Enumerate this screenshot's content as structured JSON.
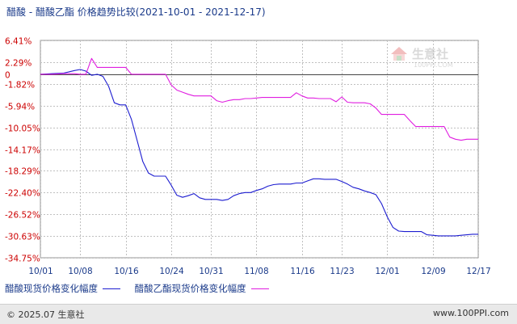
{
  "title_parts": {
    "name": "醋酸 - 醋酸乙酯 价格趋势比较",
    "date_range": "(2021-10-01 - 2021-12-17)"
  },
  "watermark": {
    "brand": "生意社",
    "url": "100PPI.COM"
  },
  "footer": {
    "copyright": "© 2025.07 生意社",
    "url": "www.100PPI.com"
  },
  "colors": {
    "series1": "#1d1dd0",
    "series2": "#e01ee0",
    "grid": "#c0c0c0",
    "tick_label": "#cc0000",
    "axis_text": "#1a3a8a"
  },
  "chart_data": {
    "type": "line",
    "title": "醋酸 - 醋酸乙酯 价格趋势比较(2021-10-01 - 2021-12-17)",
    "xlabel": "",
    "ylabel": "",
    "ylim": [
      -34.75,
      6.41
    ],
    "grid": true,
    "legend_position": "bottom",
    "y_ticks": [
      6.41,
      2.29,
      0,
      -1.82,
      -5.94,
      -10.05,
      -14.17,
      -18.29,
      -22.4,
      -26.52,
      -30.63,
      -34.75
    ],
    "y_tick_labels": [
      "6.41%",
      "2.29%",
      "0",
      "-1.82%",
      "-5.94%",
      "-10.05%",
      "-14.17%",
      "-18.29%",
      "-22.40%",
      "-26.52%",
      "-30.63%",
      "-34.75%"
    ],
    "x_start": "2021-10-01",
    "x_end": "2021-12-17",
    "x_ticks": [
      "2021-10-01",
      "2021-10-08",
      "2021-10-16",
      "2021-10-24",
      "2021-10-31",
      "2021-11-08",
      "2021-11-16",
      "2021-11-23",
      "2021-12-01",
      "2021-12-09",
      "2021-12-17"
    ],
    "x_tick_labels": [
      "10/01",
      "10/08",
      "10/16",
      "10/24",
      "10/31",
      "11/08",
      "11/16",
      "11/23",
      "12/01",
      "12/09",
      "12/17"
    ],
    "series": [
      {
        "name": "醋酸现货价格变化幅度",
        "points": [
          [
            "2021-10-01",
            0.0
          ],
          [
            "2021-10-03",
            0.1
          ],
          [
            "2021-10-05",
            0.2
          ],
          [
            "2021-10-07",
            0.7
          ],
          [
            "2021-10-08",
            0.9
          ],
          [
            "2021-10-09",
            0.6
          ],
          [
            "2021-10-10",
            -0.2
          ],
          [
            "2021-10-11",
            0.0
          ],
          [
            "2021-10-12",
            -0.4
          ],
          [
            "2021-10-13",
            -2.3
          ],
          [
            "2021-10-14",
            -5.4
          ],
          [
            "2021-10-15",
            -5.8
          ],
          [
            "2021-10-16",
            -5.8
          ],
          [
            "2021-10-17",
            -8.5
          ],
          [
            "2021-10-18",
            -12.5
          ],
          [
            "2021-10-19",
            -16.5
          ],
          [
            "2021-10-20",
            -18.7
          ],
          [
            "2021-10-21",
            -19.3
          ],
          [
            "2021-10-22",
            -19.3
          ],
          [
            "2021-10-23",
            -19.3
          ],
          [
            "2021-10-24",
            -21.0
          ],
          [
            "2021-10-25",
            -22.9
          ],
          [
            "2021-10-26",
            -23.3
          ],
          [
            "2021-10-27",
            -23.0
          ],
          [
            "2021-10-28",
            -22.6
          ],
          [
            "2021-10-29",
            -23.4
          ],
          [
            "2021-10-30",
            -23.7
          ],
          [
            "2021-11-01",
            -23.7
          ],
          [
            "2021-11-02",
            -23.9
          ],
          [
            "2021-11-03",
            -23.7
          ],
          [
            "2021-11-04",
            -23.0
          ],
          [
            "2021-11-05",
            -22.6
          ],
          [
            "2021-11-06",
            -22.4
          ],
          [
            "2021-11-07",
            -22.4
          ],
          [
            "2021-11-08",
            -22.0
          ],
          [
            "2021-11-09",
            -21.7
          ],
          [
            "2021-11-10",
            -21.2
          ],
          [
            "2021-11-11",
            -20.9
          ],
          [
            "2021-11-12",
            -20.8
          ],
          [
            "2021-11-13",
            -20.8
          ],
          [
            "2021-11-14",
            -20.8
          ],
          [
            "2021-11-15",
            -20.6
          ],
          [
            "2021-11-16",
            -20.6
          ],
          [
            "2021-11-17",
            -20.2
          ],
          [
            "2021-11-18",
            -19.8
          ],
          [
            "2021-11-19",
            -19.8
          ],
          [
            "2021-11-20",
            -19.9
          ],
          [
            "2021-11-21",
            -19.9
          ],
          [
            "2021-11-22",
            -19.9
          ],
          [
            "2021-11-23",
            -20.3
          ],
          [
            "2021-11-24",
            -20.8
          ],
          [
            "2021-11-25",
            -21.4
          ],
          [
            "2021-11-26",
            -21.7
          ],
          [
            "2021-11-27",
            -22.1
          ],
          [
            "2021-11-28",
            -22.4
          ],
          [
            "2021-11-29",
            -22.8
          ],
          [
            "2021-11-30",
            -24.5
          ],
          [
            "2021-12-01",
            -27.0
          ],
          [
            "2021-12-02",
            -29.0
          ],
          [
            "2021-12-03",
            -29.7
          ],
          [
            "2021-12-04",
            -29.8
          ],
          [
            "2021-12-05",
            -29.8
          ],
          [
            "2021-12-06",
            -29.8
          ],
          [
            "2021-12-07",
            -29.8
          ],
          [
            "2021-12-08",
            -30.4
          ],
          [
            "2021-12-09",
            -30.5
          ],
          [
            "2021-12-10",
            -30.6
          ],
          [
            "2021-12-11",
            -30.6
          ],
          [
            "2021-12-12",
            -30.6
          ],
          [
            "2021-12-13",
            -30.6
          ],
          [
            "2021-12-14",
            -30.5
          ],
          [
            "2021-12-15",
            -30.4
          ],
          [
            "2021-12-16",
            -30.3
          ],
          [
            "2021-12-17",
            -30.3
          ]
        ]
      },
      {
        "name": "醋酸乙酯现货价格变化幅度",
        "points": [
          [
            "2021-10-01",
            0.0
          ],
          [
            "2021-10-03",
            0.0
          ],
          [
            "2021-10-05",
            0.1
          ],
          [
            "2021-10-07",
            0.1
          ],
          [
            "2021-10-08",
            0.0
          ],
          [
            "2021-10-09",
            0.0
          ],
          [
            "2021-10-10",
            3.0
          ],
          [
            "2021-10-11",
            1.3
          ],
          [
            "2021-10-12",
            1.3
          ],
          [
            "2021-10-13",
            1.3
          ],
          [
            "2021-10-14",
            1.3
          ],
          [
            "2021-10-15",
            1.3
          ],
          [
            "2021-10-16",
            1.3
          ],
          [
            "2021-10-17",
            0.0
          ],
          [
            "2021-10-18",
            0.0
          ],
          [
            "2021-10-19",
            0.0
          ],
          [
            "2021-10-20",
            0.0
          ],
          [
            "2021-10-21",
            0.0
          ],
          [
            "2021-10-22",
            0.0
          ],
          [
            "2021-10-23",
            0.0
          ],
          [
            "2021-10-24",
            -2.0
          ],
          [
            "2021-10-25",
            -3.0
          ],
          [
            "2021-10-26",
            -3.4
          ],
          [
            "2021-10-27",
            -3.8
          ],
          [
            "2021-10-28",
            -4.1
          ],
          [
            "2021-10-29",
            -4.1
          ],
          [
            "2021-10-30",
            -4.1
          ],
          [
            "2021-10-31",
            -4.1
          ],
          [
            "2021-11-01",
            -5.0
          ],
          [
            "2021-11-02",
            -5.3
          ],
          [
            "2021-11-03",
            -5.0
          ],
          [
            "2021-11-04",
            -4.8
          ],
          [
            "2021-11-05",
            -4.8
          ],
          [
            "2021-11-06",
            -4.6
          ],
          [
            "2021-11-07",
            -4.6
          ],
          [
            "2021-11-08",
            -4.5
          ],
          [
            "2021-11-09",
            -4.4
          ],
          [
            "2021-11-10",
            -4.4
          ],
          [
            "2021-11-11",
            -4.4
          ],
          [
            "2021-11-12",
            -4.4
          ],
          [
            "2021-11-13",
            -4.4
          ],
          [
            "2021-11-14",
            -4.4
          ],
          [
            "2021-11-15",
            -3.5
          ],
          [
            "2021-11-16",
            -4.1
          ],
          [
            "2021-11-17",
            -4.5
          ],
          [
            "2021-11-18",
            -4.5
          ],
          [
            "2021-11-19",
            -4.6
          ],
          [
            "2021-11-20",
            -4.6
          ],
          [
            "2021-11-21",
            -4.6
          ],
          [
            "2021-11-22",
            -5.2
          ],
          [
            "2021-11-23",
            -4.3
          ],
          [
            "2021-11-24",
            -5.3
          ],
          [
            "2021-11-25",
            -5.4
          ],
          [
            "2021-11-26",
            -5.4
          ],
          [
            "2021-11-27",
            -5.4
          ],
          [
            "2021-11-28",
            -5.6
          ],
          [
            "2021-11-29",
            -6.4
          ],
          [
            "2021-11-30",
            -7.6
          ],
          [
            "2021-12-01",
            -7.6
          ],
          [
            "2021-12-02",
            -7.6
          ],
          [
            "2021-12-03",
            -7.6
          ],
          [
            "2021-12-04",
            -7.6
          ],
          [
            "2021-12-05",
            -8.8
          ],
          [
            "2021-12-06",
            -9.9
          ],
          [
            "2021-12-07",
            -9.9
          ],
          [
            "2021-12-08",
            -9.9
          ],
          [
            "2021-12-09",
            -9.9
          ],
          [
            "2021-12-10",
            -9.9
          ],
          [
            "2021-12-11",
            -9.9
          ],
          [
            "2021-12-12",
            -11.9
          ],
          [
            "2021-12-13",
            -12.3
          ],
          [
            "2021-12-14",
            -12.5
          ],
          [
            "2021-12-15",
            -12.3
          ],
          [
            "2021-12-16",
            -12.3
          ],
          [
            "2021-12-17",
            -12.3
          ]
        ]
      }
    ]
  }
}
